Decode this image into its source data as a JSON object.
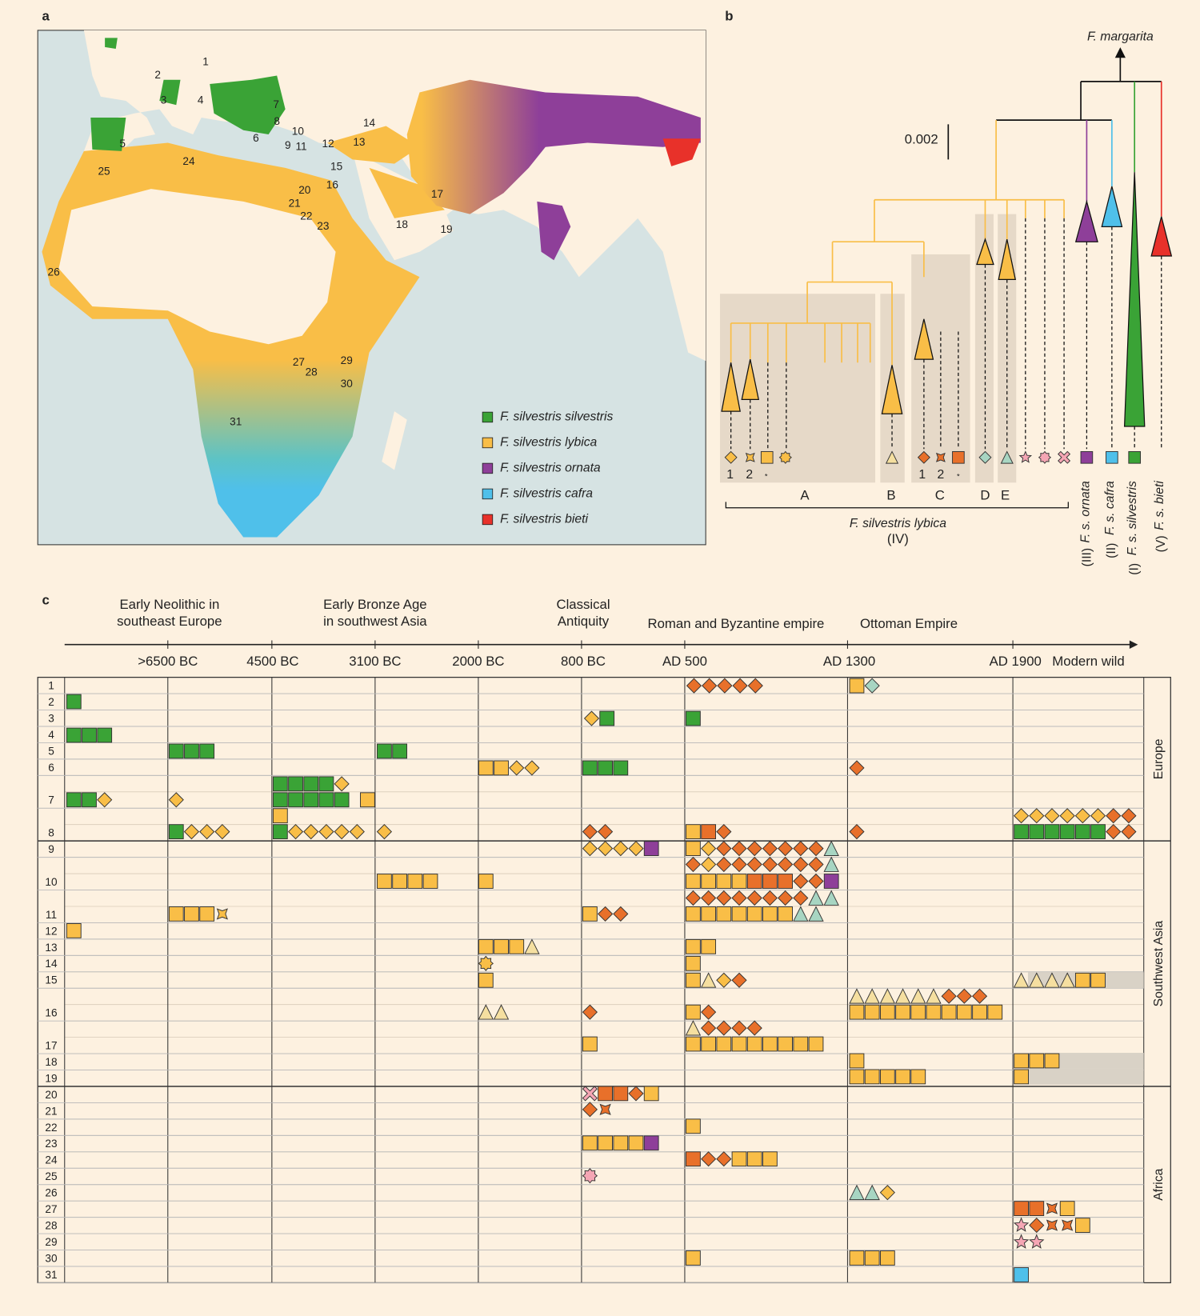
{
  "panel_a": {
    "label": "a",
    "map_numbers": [
      "1",
      "2",
      "3",
      "4",
      "5",
      "6",
      "7",
      "8",
      "9",
      "10",
      "11",
      "12",
      "13",
      "14",
      "15",
      "16",
      "17",
      "18",
      "19",
      "20",
      "21",
      "22",
      "23",
      "24",
      "25",
      "26",
      "27",
      "28",
      "29",
      "30",
      "31"
    ],
    "legend": [
      {
        "name": "F. silvestris silvestris",
        "color": "#3aa336"
      },
      {
        "name": "F. silvestris lybica",
        "color": "#f9be47"
      },
      {
        "name": "F. silvestris ornata",
        "color": "#8e3f99"
      },
      {
        "name": "F. silvestris cafra",
        "color": "#4fc0ea"
      },
      {
        "name": "F. silvestris bieti",
        "color": "#e8312a"
      }
    ]
  },
  "panel_b": {
    "label": "b",
    "top_label": "F. margarita",
    "scale": "0.002",
    "lineage_labels": [
      "1",
      "2",
      "*",
      "1",
      "2",
      "*"
    ],
    "clades": [
      "A",
      "B",
      "C",
      "D",
      "E"
    ],
    "lybica": "F. silvestris lybica",
    "lybica_num": "(IV)",
    "subspecies": [
      {
        "name": "F. s. ornata",
        "num": "(III)"
      },
      {
        "name": "F. s. cafra",
        "num": "(II)"
      },
      {
        "name": "F. s. silvestris",
        "num": "(I)"
      },
      {
        "name": "F. s. bieti",
        "num": "(V)"
      }
    ]
  },
  "panel_c": {
    "label": "c",
    "eras": [
      [
        "Early Neolithic in",
        "southeast Europe"
      ],
      [
        "Early Bronze Age",
        "in southwest Asia"
      ],
      [
        "Classical",
        "Antiquity"
      ],
      [
        "Roman and Byzantine empire"
      ],
      [
        "Ottoman Empire"
      ]
    ],
    "time_labels": [
      ">6500 BC",
      "4500 BC",
      "3100 BC",
      "2000 BC",
      "800 BC",
      "AD 500",
      "AD 1300",
      "AD 1900",
      "Modern wild"
    ],
    "rows": [
      "1",
      "2",
      "3",
      "4",
      "5",
      "6",
      "7",
      "8",
      "9",
      "10",
      "11",
      "12",
      "13",
      "14",
      "15",
      "16",
      "17",
      "18",
      "19",
      "20",
      "21",
      "22",
      "23",
      "24",
      "25",
      "26",
      "27",
      "28",
      "29",
      "30",
      "31"
    ],
    "regions": [
      "Europe",
      "Southwest Asia",
      "Africa"
    ]
  }
}
